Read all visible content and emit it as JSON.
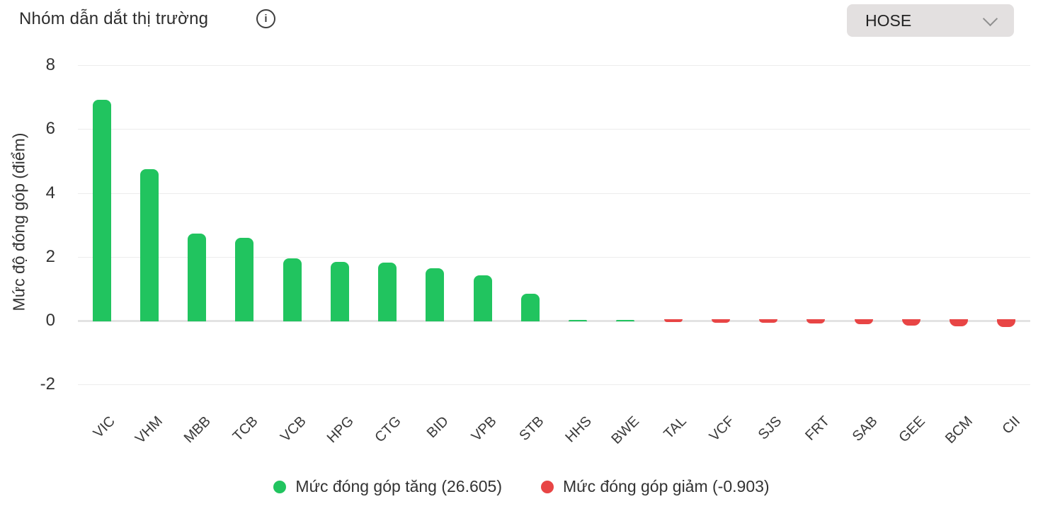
{
  "header": {
    "title": "Nhóm dẫn dắt thị trường",
    "info_icon": "i",
    "dropdown": {
      "value": "HOSE"
    }
  },
  "chart_data": {
    "type": "bar",
    "title": "Nhóm dẫn dắt thị trường",
    "xlabel": "",
    "ylabel": "Mức độ đóng góp (điểm)",
    "ylim": [
      -2,
      8
    ],
    "yticks": [
      8,
      6,
      4,
      2,
      0,
      -2
    ],
    "grid": true,
    "legend_position": "bottom",
    "categories": [
      "VIC",
      "VHM",
      "MBB",
      "TCB",
      "VCB",
      "HPG",
      "CTG",
      "BID",
      "VPB",
      "STB",
      "HHS",
      "BWE",
      "TAL",
      "VCF",
      "SJS",
      "FRT",
      "SAB",
      "GEE",
      "BCM",
      "CII"
    ],
    "values": [
      6.92,
      4.74,
      2.72,
      2.6,
      1.95,
      1.85,
      1.82,
      1.63,
      1.42,
      0.84,
      0.02,
      0.02,
      -0.05,
      -0.06,
      -0.07,
      -0.08,
      -0.12,
      -0.15,
      -0.17,
      -0.2
    ],
    "colors": {
      "positive": "#21c45f",
      "negative": "#e84545"
    },
    "positive_total": "26.605",
    "negative_total": "-0.903",
    "legend": [
      {
        "label": "Mức đóng góp tăng (26.605)",
        "color": "#21c45f"
      },
      {
        "label": "Mức đóng góp giảm (-0.903)",
        "color": "#e84545"
      }
    ]
  }
}
